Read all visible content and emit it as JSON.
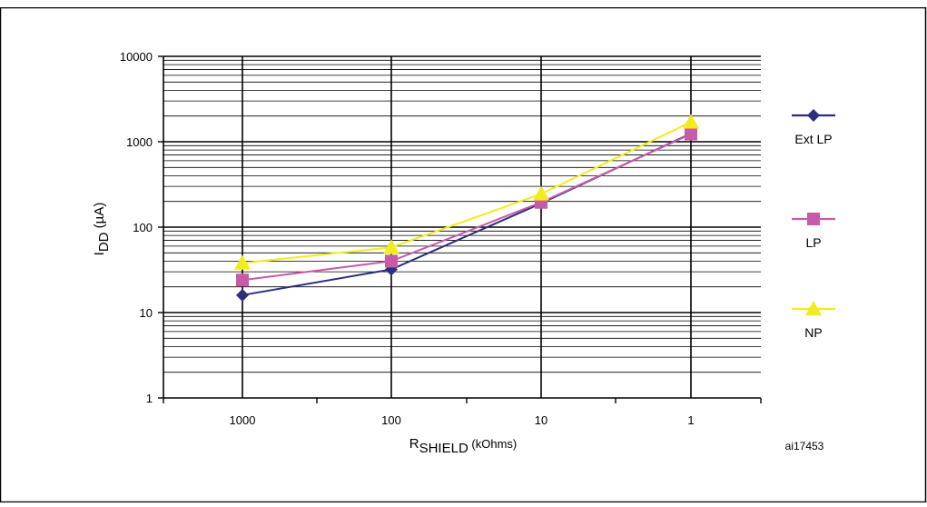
{
  "figure": {
    "top_caption": "",
    "watermark_id": "ai17453"
  },
  "colors": {
    "Ext LP": "#2B2F7E",
    "LP": "#C85AA8",
    "NP": "#F2EC1C",
    "grid": "#000000"
  },
  "chart_data": {
    "type": "line",
    "title": "",
    "ylabel": {
      "main": "I",
      "sub": "DD",
      "rest": " (µA)"
    },
    "xlabel": {
      "main": "R",
      "sub": "SHIELD",
      "rest": " (kOhms)"
    },
    "y_scale": "log",
    "ylim": [
      1,
      10000
    ],
    "y_ticks": [
      "1",
      "10",
      "100",
      "1000",
      "10000"
    ],
    "x_scale": "categorical",
    "categories": [
      "1000",
      "100",
      "10",
      "1"
    ],
    "grid": true,
    "legend_position": "right",
    "series": [
      {
        "name": "Ext LP",
        "marker": "diamond",
        "values": [
          16,
          32,
          190,
          1250
        ]
      },
      {
        "name": "LP",
        "marker": "square",
        "values": [
          24,
          40,
          195,
          1230
        ]
      },
      {
        "name": "NP",
        "marker": "triangle",
        "values": [
          38,
          58,
          245,
          1700
        ]
      }
    ]
  }
}
